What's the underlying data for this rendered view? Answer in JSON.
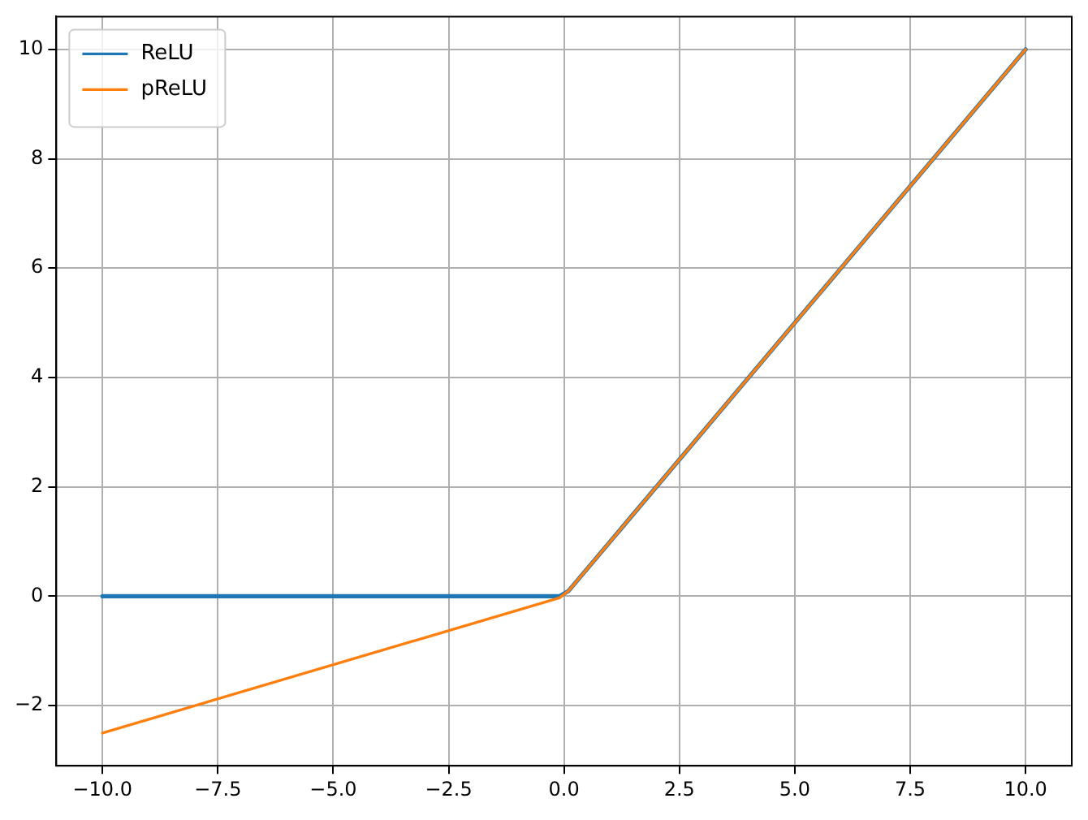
{
  "chart_data": {
    "type": "line",
    "xlim": [
      -11,
      11
    ],
    "ylim": [
      -3.1,
      10.6
    ],
    "xticks": [
      {
        "value": -10,
        "label": "−10.0"
      },
      {
        "value": -7.5,
        "label": "−7.5"
      },
      {
        "value": -5,
        "label": "−5.0"
      },
      {
        "value": -2.5,
        "label": "−2.5"
      },
      {
        "value": 0,
        "label": "0.0"
      },
      {
        "value": 2.5,
        "label": "2.5"
      },
      {
        "value": 5,
        "label": "5.0"
      },
      {
        "value": 7.5,
        "label": "7.5"
      },
      {
        "value": 10,
        "label": "10.0"
      }
    ],
    "yticks": [
      {
        "value": -2,
        "label": "−2"
      },
      0,
      2,
      4,
      6,
      8,
      10
    ],
    "grid": true,
    "legend": "top left",
    "marker": "none",
    "line_style": "solid",
    "series": [
      {
        "name": "ReLU",
        "color": "#1f77b4",
        "x": [
          -10,
          -0.1,
          0.1,
          10
        ],
        "values": [
          0,
          0,
          0.1,
          10
        ]
      },
      {
        "name": "pReLU",
        "color": "#ff7f0e",
        "x": [
          -10,
          -0.1,
          0.1,
          10
        ],
        "values": [
          -2.5,
          -0.03,
          0.1,
          10
        ]
      }
    ]
  }
}
